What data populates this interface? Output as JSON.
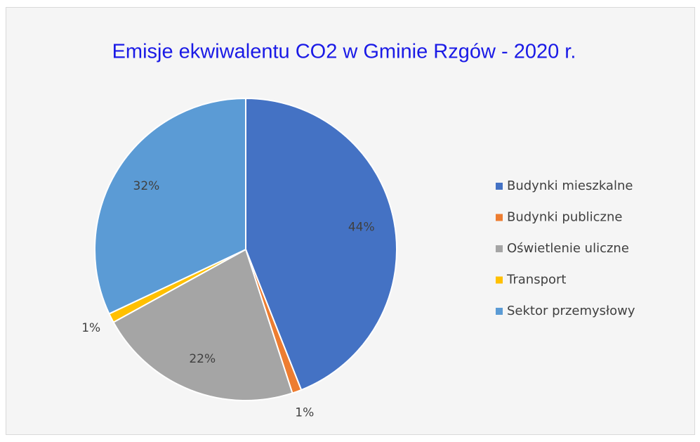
{
  "chart_data": {
    "type": "pie",
    "title": "Emisje ekwiwalentu CO2 w Gminie Rzgów - 2020 r.",
    "categories": [
      "Budynki mieszkalne",
      "Budynki publiczne",
      "Oświetlenie uliczne",
      "Transport",
      "Sektor przemysłowy"
    ],
    "values": [
      44,
      1,
      22,
      1,
      32
    ],
    "value_labels": [
      "44%",
      "1%",
      "22%",
      "1%",
      "32%"
    ],
    "colors": [
      "#4472c4",
      "#ed7d31",
      "#a5a5a5",
      "#ffc000",
      "#5b9bd5"
    ],
    "legend": "right"
  }
}
